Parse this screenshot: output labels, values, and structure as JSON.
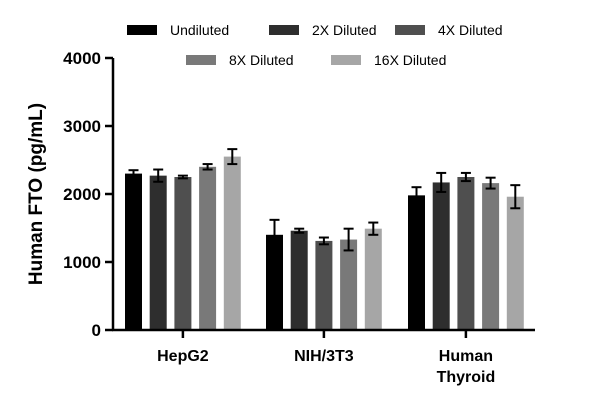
{
  "chart_data": {
    "type": "bar",
    "categories": [
      [
        "HepG2"
      ],
      [
        "NIH/3T3"
      ],
      [
        "Human",
        "Thyroid"
      ]
    ],
    "ylabel": "Human FTO (pg/mL)",
    "ylim": [
      0,
      4000
    ],
    "yticks": [
      0,
      1000,
      2000,
      3000,
      4000
    ],
    "grid": false,
    "legend_position": "top",
    "series": [
      {
        "name": "Undiluted",
        "color": "#000000",
        "values": [
          2300,
          1400,
          1980
        ],
        "errors": [
          50,
          220,
          120
        ]
      },
      {
        "name": "2X Diluted",
        "color": "#2e2e2e",
        "values": [
          2270,
          1460,
          2170
        ],
        "errors": [
          90,
          30,
          140
        ]
      },
      {
        "name": "4X Diluted",
        "color": "#4f4f4f",
        "values": [
          2250,
          1310,
          2250
        ],
        "errors": [
          20,
          50,
          60
        ]
      },
      {
        "name": "8X Diluted",
        "color": "#797979",
        "values": [
          2400,
          1330,
          2160
        ],
        "errors": [
          40,
          160,
          80
        ]
      },
      {
        "name": "16X Diluted",
        "color": "#a6a6a6",
        "values": [
          2550,
          1490,
          1960
        ],
        "errors": [
          110,
          90,
          170
        ]
      }
    ]
  }
}
